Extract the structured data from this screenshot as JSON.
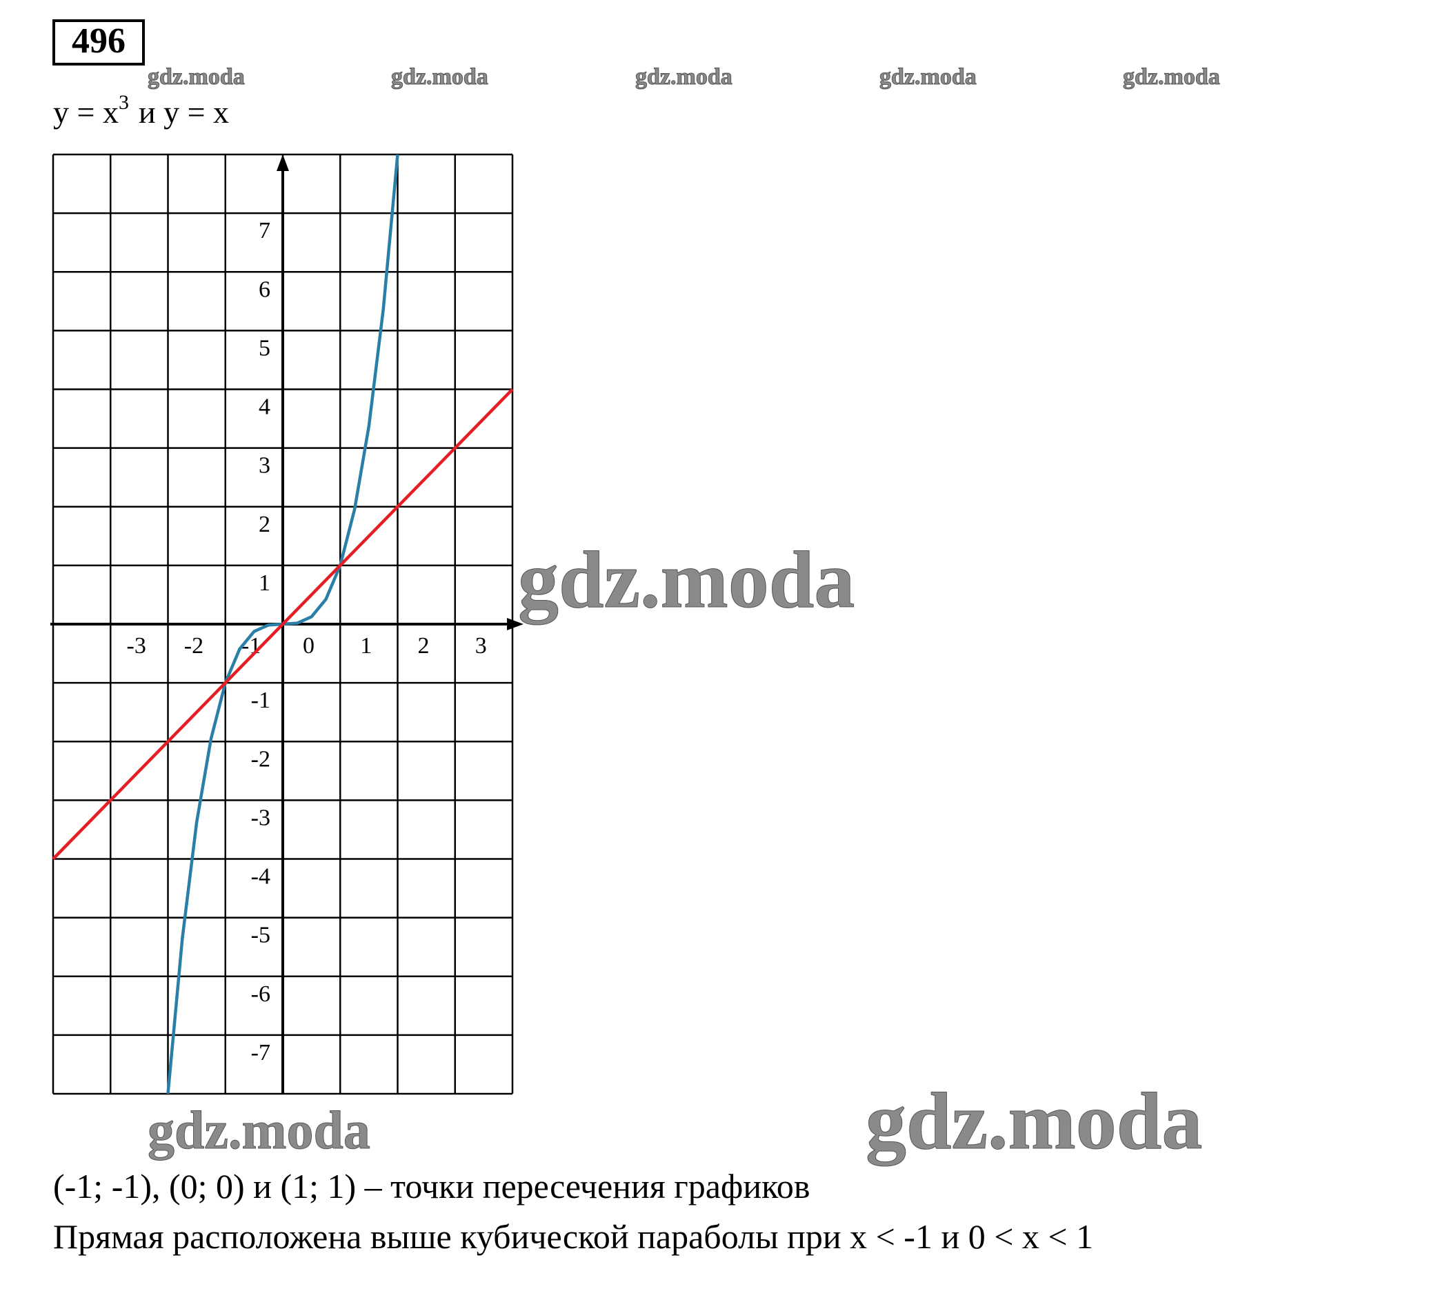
{
  "number": "496",
  "title": {
    "base": "y = x",
    "exponent": "3",
    "rest": "и y = x"
  },
  "watermarks": [
    "gdz.moda",
    "gdz.moda",
    "gdz.moda",
    "gdz.moda",
    "gdz.moda",
    "gdz.moda",
    "gdz.moda",
    "gdz.moda"
  ],
  "chart_data": {
    "type": "line",
    "xlim": [
      -4,
      4
    ],
    "ylim": [
      -8,
      8
    ],
    "xticks": [
      -3,
      -2,
      -1,
      0,
      1,
      2,
      3
    ],
    "yticks": [
      -7,
      -6,
      -5,
      -4,
      -3,
      -2,
      -1,
      1,
      2,
      3,
      4,
      5,
      6,
      7
    ],
    "grid": true,
    "series": [
      {
        "color": "#2a7fa6",
        "x": [
          -2,
          -1.75,
          -1.5,
          -1.25,
          -1,
          -0.75,
          -0.5,
          -0.25,
          0,
          0.25,
          0.5,
          0.75,
          1,
          1.25,
          1.5,
          1.75,
          2
        ],
        "values": [
          -8,
          -5.359375,
          -3.375,
          -1.953125,
          -1,
          -0.421875,
          -0.125,
          -0.015625,
          0,
          0.015625,
          0.125,
          0.421875,
          1,
          1.953125,
          3.375,
          5.359375,
          8
        ]
      },
      {
        "color": "#e31e24",
        "x": [
          -4,
          4
        ],
        "values": [
          -4,
          4
        ]
      }
    ]
  },
  "answer": [
    "(-1; -1), (0; 0) и (1; 1) – точки пересечения графиков",
    "Прямая расположена выше кубической параболы при x < -1 и 0 < x < 1"
  ]
}
